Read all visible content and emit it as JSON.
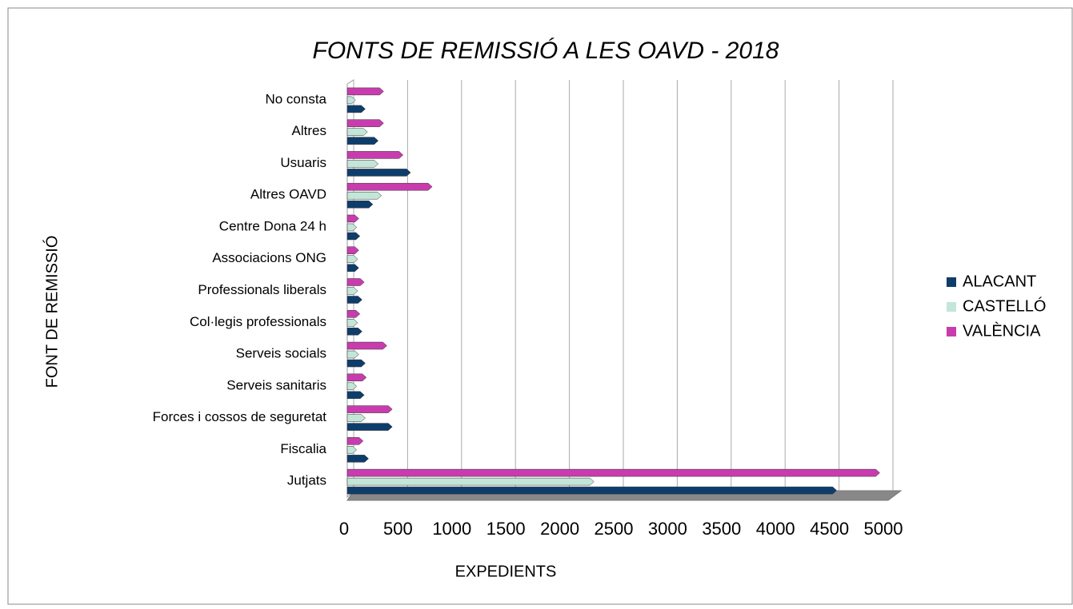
{
  "chart_data": {
    "type": "barh",
    "title": "FONTS DE REMISSIÓ A LES OAVD - 2018",
    "xlabel": "EXPEDIENTS",
    "ylabel": "FONT DE REMISSIÓ",
    "categories": [
      "No consta",
      "Altres",
      "Usuaris",
      "Altres OAVD",
      "Centre Dona 24 h",
      "Associacions ONG",
      "Professionals liberals",
      "Col·legis professionals",
      "Serveis socials",
      "Serveis sanitaris",
      "Forces i cossos de seguretat",
      "Fiscalia",
      "Jutjats"
    ],
    "series": [
      {
        "name": "ALACANT",
        "color": "#0e3d6b",
        "values": [
          130,
          250,
          550,
          200,
          80,
          70,
          100,
          100,
          130,
          120,
          380,
          160,
          4500
        ]
      },
      {
        "name": "CASTELLÓ",
        "color": "#c3e6d8",
        "values": [
          40,
          150,
          250,
          280,
          50,
          60,
          60,
          60,
          70,
          50,
          130,
          50,
          2250
        ]
      },
      {
        "name": "VALÈNCIA",
        "color": "#c83cae",
        "values": [
          300,
          300,
          480,
          750,
          70,
          70,
          120,
          80,
          330,
          140,
          380,
          110,
          4900
        ]
      }
    ],
    "xlim": [
      0,
      5000
    ],
    "xticks": [
      0,
      500,
      1000,
      1500,
      2000,
      2500,
      3000,
      3500,
      4000,
      4500,
      5000
    ],
    "grid": true,
    "legend": "right"
  }
}
